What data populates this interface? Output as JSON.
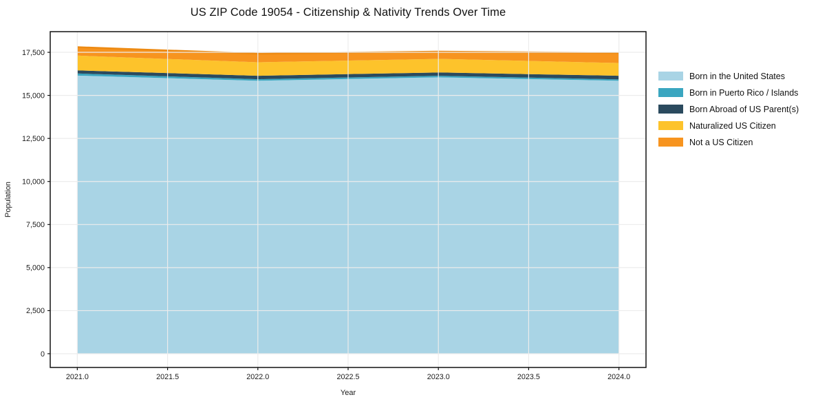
{
  "title": "US ZIP Code 19054 - Citizenship & Nativity Trends Over Time",
  "background_color": "#ffffff",
  "grid_color": "#ececec",
  "spine_color": "#111111",
  "text_color": "#1a1a1a",
  "chart_data": {
    "type": "area",
    "stacked": true,
    "title": "US ZIP Code 19054 - Citizenship & Nativity Trends Over Time",
    "xlabel": "Year",
    "ylabel": "Population",
    "x": [
      2021,
      2022,
      2023,
      2024
    ],
    "xlim": [
      2020.85,
      2024.15
    ],
    "ylim": [
      -800,
      18700
    ],
    "x_ticks": [
      2021.0,
      2021.5,
      2022.0,
      2022.5,
      2023.0,
      2023.5,
      2024.0
    ],
    "x_tick_labels": [
      "2021.0",
      "2021.5",
      "2022.0",
      "2022.5",
      "2023.0",
      "2023.5",
      "2024.0"
    ],
    "y_ticks": [
      0,
      2500,
      5000,
      7500,
      10000,
      12500,
      15000,
      17500
    ],
    "y_tick_labels": [
      "0",
      "2,500",
      "5,000",
      "7,500",
      "10,000",
      "12,500",
      "15,000",
      "17,500"
    ],
    "grid": true,
    "legend_position": "right",
    "top_edge_color": "#ed8a12",
    "series": [
      {
        "name": "Born in the United States",
        "color": "#a9d4e5",
        "values": [
          16150,
          15850,
          16050,
          15850
        ]
      },
      {
        "name": "Born in Puerto Rico / Islands",
        "color": "#3aa6c0",
        "values": [
          120,
          90,
          90,
          80
        ]
      },
      {
        "name": "Born Abroad of US Parent(s)",
        "color": "#2b4a5e",
        "values": [
          180,
          200,
          190,
          210
        ]
      },
      {
        "name": "Naturalized US Citizen",
        "color": "#fdc32b",
        "values": [
          860,
          780,
          790,
          740
        ]
      },
      {
        "name": "Not a US Citizen",
        "color": "#f7941f",
        "values": [
          490,
          500,
          420,
          580
        ]
      }
    ]
  }
}
